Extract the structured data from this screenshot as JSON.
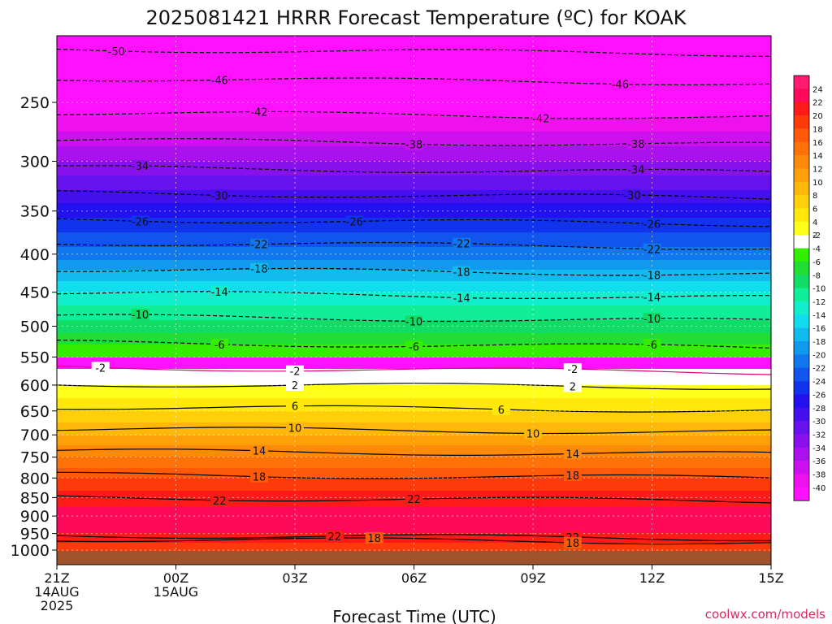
{
  "chart_data": {
    "type": "heatmap",
    "title": "2025081421 HRRR Forecast Temperature (ºC) for KOAK",
    "xlabel": "Forecast Time (UTC)",
    "ylabel": "",
    "credit": "coolwx.com/models",
    "y_scale": "log",
    "ylim": [
      1030,
      200
    ],
    "xlim": [
      "2025-08-14 21Z",
      "2025-08-15 15Z"
    ],
    "x_ticks": [
      {
        "t": 0,
        "lines": [
          "21Z",
          "14AUG",
          "2025"
        ]
      },
      {
        "t": 3,
        "lines": [
          "00Z",
          "15AUG"
        ]
      },
      {
        "t": 6,
        "lines": [
          "03Z"
        ]
      },
      {
        "t": 9,
        "lines": [
          "06Z"
        ]
      },
      {
        "t": 12,
        "lines": [
          "09Z"
        ]
      },
      {
        "t": 15,
        "lines": [
          "12Z"
        ]
      },
      {
        "t": 18,
        "lines": [
          "15Z"
        ]
      }
    ],
    "y_ticks": [
      "250",
      "300",
      "350",
      "400",
      "450",
      "500",
      "550",
      "600",
      "650",
      "700",
      "750",
      "800",
      "850",
      "900",
      "950",
      "1000"
    ],
    "grid": true,
    "colorbar": {
      "levels": [
        "24",
        "22",
        "20",
        "18",
        "16",
        "14",
        "12",
        "10",
        "8",
        "6",
        "4",
        "2",
        "-2",
        "-4",
        "-6",
        "-8",
        "-10",
        "-12",
        "-14",
        "-16",
        "-18",
        "-20",
        "-22",
        "-24",
        "-26",
        "-28",
        "-30",
        "-32",
        "-34",
        "-36",
        "-38",
        "-40"
      ],
      "colors": [
        "#ff1a72",
        "#ff0a5a",
        "#ff1a1a",
        "#ff3a0a",
        "#ff5a0a",
        "#ff720a",
        "#ff8a0a",
        "#ffa00a",
        "#ffb80a",
        "#ffd00a",
        "#ffe80a",
        "#ffff1a",
        "#ffffff",
        "#33ee00",
        "#22dd33",
        "#11dd66",
        "#11ee99",
        "#11eecc",
        "#11ddee",
        "#11bbee",
        "#1199ee",
        "#1177ee",
        "#1155ee",
        "#1133ee",
        "#2211ee",
        "#4411ee",
        "#6611ee",
        "#8811ee",
        "#aa11ee",
        "#cc11ee",
        "#ee11ee",
        "#ff11ff"
      ]
    },
    "temperature_profile": [
      {
        "p": 1010,
        "t": 18
      },
      {
        "p": 980,
        "t": 20
      },
      {
        "p": 950,
        "t": 22
      },
      {
        "p": 900,
        "t": 23
      },
      {
        "p": 850,
        "t": 21
      },
      {
        "p": 800,
        "t": 18
      },
      {
        "p": 750,
        "t": 14
      },
      {
        "p": 700,
        "t": 10
      },
      {
        "p": 650,
        "t": 6
      },
      {
        "p": 600,
        "t": 2
      },
      {
        "p": 580,
        "t": -1
      },
      {
        "p": 550,
        "t": -4
      },
      {
        "p": 500,
        "t": -9
      },
      {
        "p": 450,
        "t": -14
      },
      {
        "p": 400,
        "t": -21
      },
      {
        "p": 350,
        "t": -27
      },
      {
        "p": 300,
        "t": -34
      },
      {
        "p": 250,
        "t": -42
      },
      {
        "p": 200,
        "t": -51
      }
    ],
    "contours": [
      {
        "v": -50,
        "p": 212,
        "labels": [
          1.5
        ]
      },
      {
        "v": -46,
        "p": 232,
        "labels": [
          4.1,
          14.2
        ]
      },
      {
        "v": -42,
        "p": 258,
        "labels": [
          5.1,
          12.2
        ]
      },
      {
        "v": -38,
        "p": 281,
        "labels": [
          9.0,
          14.6
        ]
      },
      {
        "v": -34,
        "p": 306,
        "labels": [
          2.1,
          14.6
        ]
      },
      {
        "v": -30,
        "p": 331,
        "labels": [
          4.1,
          14.5
        ]
      },
      {
        "v": -26,
        "p": 359,
        "labels": [
          2.1,
          7.5,
          15.0
        ]
      },
      {
        "v": -22,
        "p": 386,
        "labels": [
          5.1,
          10.2,
          15.0
        ]
      },
      {
        "v": -18,
        "p": 419,
        "labels": [
          5.1,
          10.2,
          15.0
        ]
      },
      {
        "v": -14,
        "p": 451,
        "labels": [
          4.1,
          10.2,
          15.0
        ]
      },
      {
        "v": -10,
        "p": 485,
        "labels": [
          2.1,
          9.0,
          15.0
        ]
      },
      {
        "v": -6,
        "p": 526,
        "labels": [
          4.1,
          9.0,
          15.0
        ]
      },
      {
        "v": -2,
        "p": 568,
        "labels": [
          1.1,
          6.0,
          13.0
        ]
      },
      {
        "v": 2,
        "p": 598,
        "labels": [
          6.0,
          13.0
        ]
      },
      {
        "v": 6,
        "p": 642,
        "labels": [
          6.0,
          11.2
        ]
      },
      {
        "v": 10,
        "p": 687,
        "labels": [
          6.0,
          12.0
        ]
      },
      {
        "v": 14,
        "p": 736,
        "labels": [
          5.1,
          13.0
        ]
      },
      {
        "v": 18,
        "p": 792,
        "labels": [
          5.1,
          13.0
        ]
      },
      {
        "v": 22,
        "p": 850,
        "labels": [
          4.1,
          9.0
        ]
      },
      {
        "v": 22,
        "p": 955,
        "labels": [
          7.0,
          13.0
        ]
      },
      {
        "v": 18,
        "p": 966,
        "labels": [
          8.0,
          13.0
        ]
      }
    ]
  }
}
